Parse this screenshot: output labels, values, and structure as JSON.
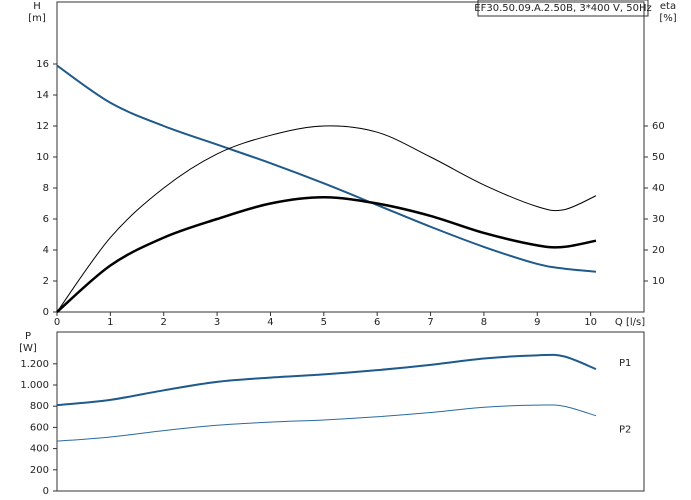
{
  "chart_data": [
    {
      "type": "line",
      "title": "EF30.50.09.A.2.50B, 3*400 V, 50Hz",
      "y_label": "H",
      "y_unit": "[m]",
      "y2_label": "eta",
      "y2_unit": "[%]",
      "x_label": "Q [l/s]",
      "x": [
        0,
        1,
        2,
        3,
        4,
        5,
        6,
        7,
        8,
        9,
        9.5,
        10.1
      ],
      "xlim": [
        0,
        11
      ],
      "xticks": [
        0,
        1,
        2,
        3,
        4,
        5,
        6,
        7,
        8,
        9,
        10
      ],
      "ylim": [
        0,
        20
      ],
      "yticks": [
        0,
        2,
        4,
        6,
        8,
        10,
        12,
        14,
        16
      ],
      "y2lim": [
        0,
        100
      ],
      "y2ticks": [
        10,
        20,
        30,
        40,
        50,
        60
      ],
      "series": [
        {
          "color": "#1f5a8c",
          "linewidth": 2,
          "values": [
            15.9,
            13.5,
            12.0,
            10.8,
            9.6,
            8.3,
            6.9,
            5.5,
            4.2,
            3.1,
            2.8,
            2.6
          ]
        },
        {
          "color": "#000000",
          "linewidth": 1,
          "axis": "y2",
          "values": [
            0,
            24,
            40,
            51,
            57,
            60,
            58,
            50,
            41,
            34,
            33,
            37.5
          ]
        },
        {
          "color": "#000000",
          "linewidth": 2.5,
          "axis": "y2",
          "values": [
            0,
            15,
            24,
            30,
            35,
            37,
            35,
            31,
            25.5,
            21.5,
            21,
            23
          ]
        }
      ]
    },
    {
      "type": "line",
      "y_label": "P",
      "y_unit": "[W]",
      "x": [
        0,
        1,
        2,
        3,
        4,
        5,
        6,
        7,
        8,
        9,
        9.5,
        10.1
      ],
      "xlim": [
        0,
        11
      ],
      "ylim": [
        0,
        1500
      ],
      "yticks": [
        0,
        200,
        400,
        600,
        800,
        {
          "value": 1000,
          "label": "1.000"
        },
        {
          "value": 1200,
          "label": "1.200"
        }
      ],
      "series": [
        {
          "name": "P1",
          "color": "#1f5a8c",
          "linewidth": 2,
          "values": [
            810,
            860,
            950,
            1030,
            1070,
            1100,
            1140,
            1190,
            1250,
            1280,
            1270,
            1150
          ]
        },
        {
          "name": "P2",
          "color": "#2a6aa0",
          "linewidth": 1,
          "values": [
            470,
            510,
            570,
            620,
            650,
            670,
            700,
            740,
            790,
            810,
            800,
            710
          ]
        }
      ]
    }
  ]
}
